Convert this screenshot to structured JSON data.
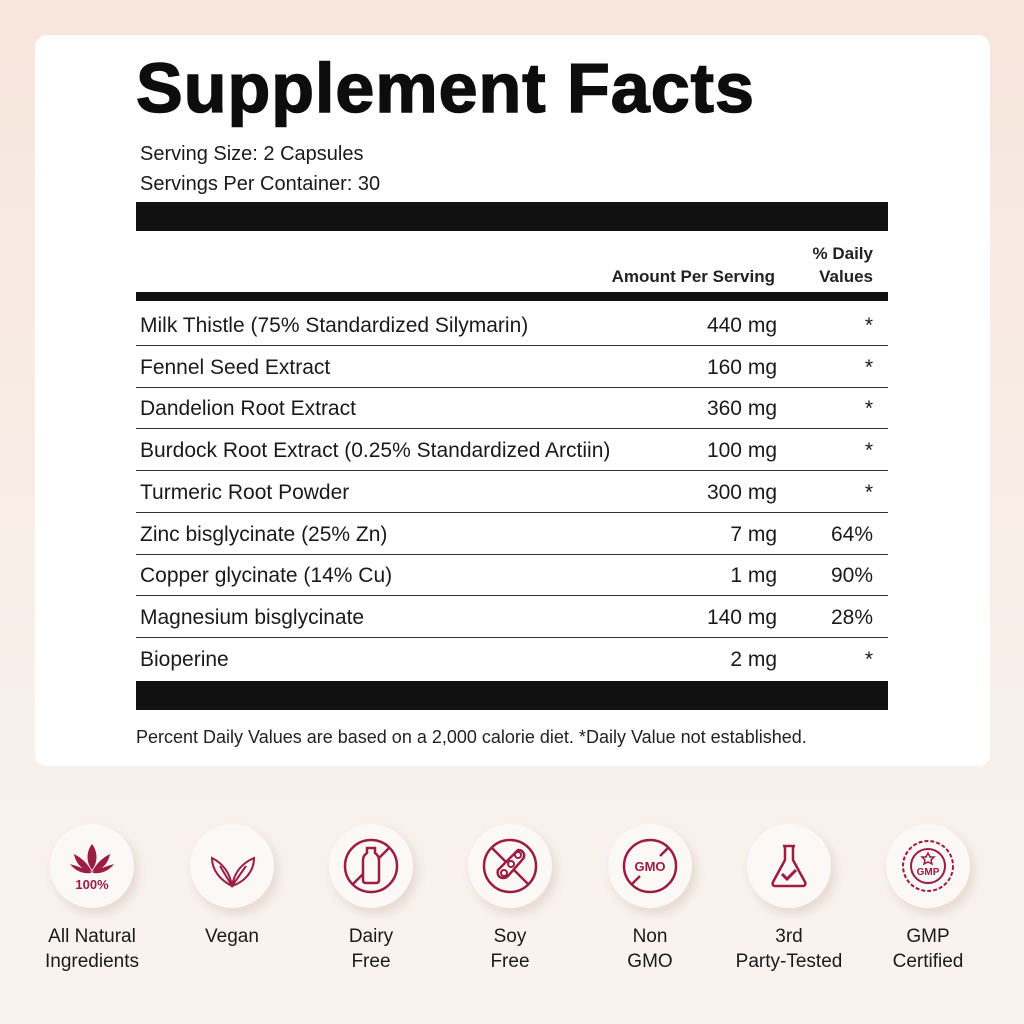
{
  "title": "Supplement Facts",
  "serving_size": "Serving Size: 2 Capsules",
  "servings_per_container": "Servings Per Container: 30",
  "headers": {
    "amount": "Amount Per Serving",
    "dv_line1": "% Daily",
    "dv_line2": "Values"
  },
  "rows": [
    {
      "name": "Milk Thistle (75% Standardized Silymarin)",
      "amount": "440 mg",
      "dv": "*"
    },
    {
      "name": "Fennel Seed Extract",
      "amount": "160 mg",
      "dv": "*"
    },
    {
      "name": "Dandelion Root Extract",
      "amount": "360 mg",
      "dv": "*"
    },
    {
      "name": "Burdock Root Extract (0.25% Standardized Arctiin)",
      "amount": "100 mg",
      "dv": "*"
    },
    {
      "name": "Turmeric Root Powder",
      "amount": "300 mg",
      "dv": "*"
    },
    {
      "name": "Zinc bisglycinate (25% Zn)",
      "amount": "7 mg",
      "dv": "64%"
    },
    {
      "name": "Copper glycinate (14% Cu)",
      "amount": "1 mg",
      "dv": "90%"
    },
    {
      "name": "Magnesium bisglycinate",
      "amount": "140 mg",
      "dv": "28%"
    },
    {
      "name": "Bioperine",
      "amount": "2 mg",
      "dv": "*"
    }
  ],
  "footnote": "Percent Daily Values are based on a 2,000 calorie diet. *Daily Value not established.",
  "accent_color": "#9b1c45",
  "badges": [
    {
      "icon": "lotus-100-icon",
      "icon_text": "100%",
      "line1": "All Natural",
      "line2": "Ingredients"
    },
    {
      "icon": "leaf-icon",
      "line1": "Vegan",
      "line2": ""
    },
    {
      "icon": "no-dairy-icon",
      "line1": "Dairy",
      "line2": "Free"
    },
    {
      "icon": "no-soy-icon",
      "line1": "Soy",
      "line2": "Free"
    },
    {
      "icon": "no-gmo-icon",
      "icon_text": "GMO",
      "line1": "Non",
      "line2": "GMO"
    },
    {
      "icon": "flask-check-icon",
      "line1": "3rd",
      "line2": "Party-Tested"
    },
    {
      "icon": "gmp-seal-icon",
      "icon_text": "GMP",
      "line1": "GMP",
      "line2": "Certified"
    }
  ]
}
